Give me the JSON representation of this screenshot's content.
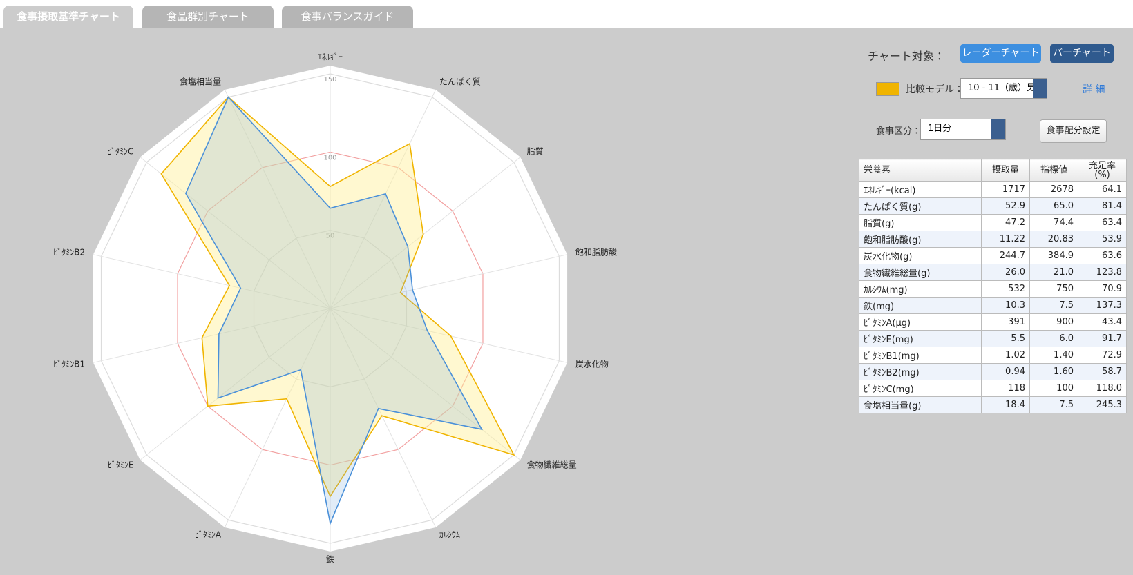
{
  "tabs": [
    "食事摂取基準チャート",
    "食品群別チャート",
    "食事バランスガイド"
  ],
  "controls": {
    "target_label": "チャート対象：",
    "radar_button": "レーダーチャート",
    "bar_button": "バーチャート",
    "model_label": "比較モデル：",
    "model_value": "10 - 11（歳）男",
    "detail_link": "詳 細",
    "meal_label": "食事区分：",
    "meal_value": "1日分",
    "meal_setting_button": "食事配分設定"
  },
  "table": {
    "header": [
      "栄養素",
      "摂取量",
      "指標値",
      "充足率\n(%)"
    ],
    "rows": [
      [
        "ｴﾈﾙｷﾞｰ(kcal)",
        "1717",
        "2678",
        "64.1"
      ],
      [
        "たんぱく質(g)",
        "52.9",
        "65.0",
        "81.4"
      ],
      [
        "脂質(g)",
        "47.2",
        "74.4",
        "63.4"
      ],
      [
        "飽和脂肪酸(g)",
        "11.22",
        "20.83",
        "53.9"
      ],
      [
        "炭水化物(g)",
        "244.7",
        "384.9",
        "63.6"
      ],
      [
        "食物繊維総量(g)",
        "26.0",
        "21.0",
        "123.8"
      ],
      [
        "ｶﾙｼｳﾑ(mg)",
        "532",
        "750",
        "70.9"
      ],
      [
        "鉄(mg)",
        "10.3",
        "7.5",
        "137.3"
      ],
      [
        "ﾋﾞﾀﾐﾝA(μg)",
        "391",
        "900",
        "43.4"
      ],
      [
        "ﾋﾞﾀﾐﾝE(mg)",
        "5.5",
        "6.0",
        "91.7"
      ],
      [
        "ﾋﾞﾀﾐﾝB1(mg)",
        "1.02",
        "1.40",
        "72.9"
      ],
      [
        "ﾋﾞﾀﾐﾝB2(mg)",
        "0.94",
        "1.60",
        "58.7"
      ],
      [
        "ﾋﾞﾀﾐﾝC(mg)",
        "118",
        "100",
        "118.0"
      ],
      [
        "食塩相当量(g)",
        "18.4",
        "7.5",
        "245.3"
      ]
    ]
  },
  "chart_data": {
    "type": "radar",
    "categories": [
      "ｴﾈﾙｷﾞｰ",
      "たんぱく質",
      "脂質",
      "飽和脂肪酸",
      "炭水化物",
      "食物繊維総量",
      "ｶﾙｼｳﾑ",
      "鉄",
      "ﾋﾞﾀﾐﾝA",
      "ﾋﾞﾀﾐﾝE",
      "ﾋﾞﾀﾐﾝB1",
      "ﾋﾞﾀﾐﾝB2",
      "ﾋﾞﾀﾐﾝC",
      "食塩相当量"
    ],
    "series": [
      {
        "color": "#f0b400",
        "fill": "rgba(255,240,150,0.45)",
        "values": [
          78,
          117,
          76,
          46,
          79,
          150,
          76,
          120,
          64,
          100,
          84,
          66,
          138,
          150
        ]
      },
      {
        "color": "#4a90d9",
        "fill": "rgba(120,170,220,0.22)",
        "values": [
          64.1,
          81.4,
          63.4,
          53.9,
          63.6,
          123.8,
          70.9,
          137.3,
          43.4,
          91.7,
          72.9,
          58.7,
          118.0,
          150
        ]
      }
    ],
    "rlim": [
      0,
      150
    ],
    "rticks": [
      50,
      100,
      150
    ],
    "grid_colors": [
      "#dcdcdc",
      "#f2a0a0",
      "#dcdcdc"
    ]
  }
}
